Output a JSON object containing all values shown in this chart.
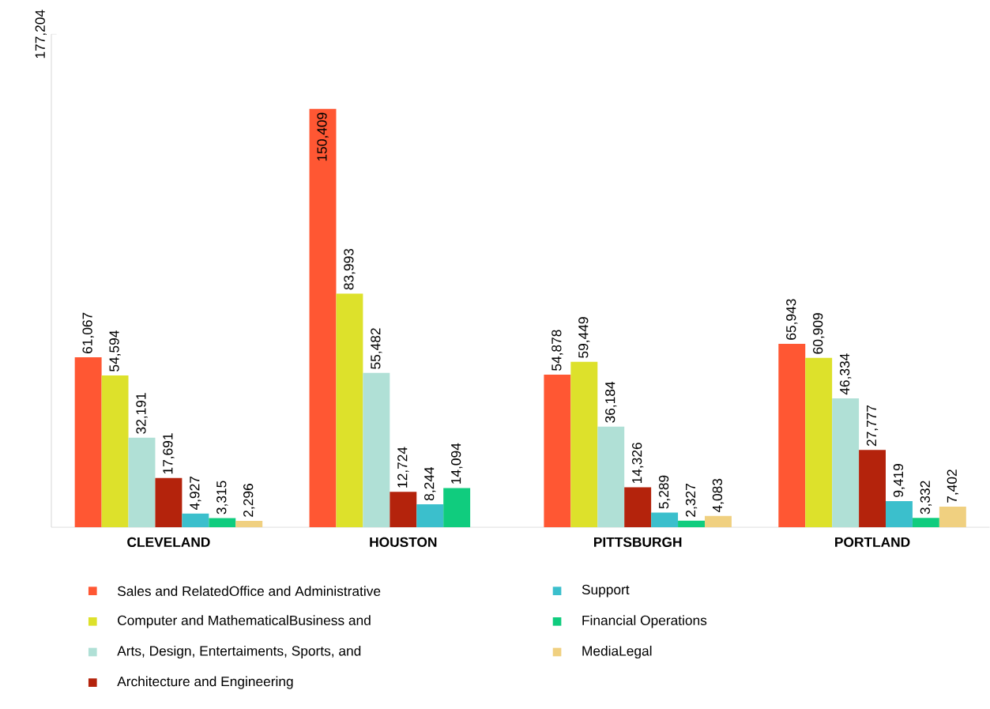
{
  "chart_data": {
    "type": "bar",
    "categories": [
      "CLEVELAND",
      "HOUSTON",
      "PITTSBURGH",
      "PORTLAND"
    ],
    "ylim": [
      0,
      177204
    ],
    "yticks": [
      {
        "value": 177204,
        "label": "177,204"
      }
    ],
    "data_labels": true,
    "legend": "bottom",
    "series": [
      {
        "name": "Sales and RelatedOffice and Administrative",
        "color": "#ff5733",
        "values": [
          61067,
          150409,
          54878,
          65943
        ],
        "value_labels": [
          "61,067",
          "150,409",
          "54,878",
          "65,943"
        ]
      },
      {
        "name": "Computer and MathematicalBusiness and",
        "color": "#dde12b",
        "values": [
          54594,
          83993,
          59449,
          60909
        ],
        "value_labels": [
          "54,594",
          "83,993",
          "59,449",
          "60,909"
        ]
      },
      {
        "name": "Arts, Design, Entertaiments, Sports, and",
        "color": "#b0e0d6",
        "values": [
          32191,
          55482,
          36184,
          46334
        ],
        "value_labels": [
          "32,191",
          "55,482",
          "36,184",
          "46,334"
        ]
      },
      {
        "name": "Architecture and Engineering",
        "color": "#b4230c",
        "values": [
          17691,
          12724,
          14326,
          27777
        ],
        "value_labels": [
          "17,691",
          "12,724",
          "14,326",
          "27,777"
        ]
      },
      {
        "name": "Support",
        "color": "#3bbfcc",
        "values": [
          4927,
          8244,
          5289,
          9419
        ],
        "value_labels": [
          "4,927",
          "8,244",
          "5,289",
          "9,419"
        ]
      },
      {
        "name": "Financial Operations",
        "color": "#10cc7e",
        "values": [
          3315,
          14094,
          2327,
          3332
        ],
        "value_labels": [
          "3,315",
          "14,094",
          "2,327",
          "3,332"
        ]
      },
      {
        "name": "MediaLegal",
        "color": "#f0d080",
        "values": [
          2296,
          null,
          4083,
          7402
        ],
        "value_labels": [
          "2,296",
          null,
          "4,083",
          "7,402"
        ]
      }
    ]
  }
}
